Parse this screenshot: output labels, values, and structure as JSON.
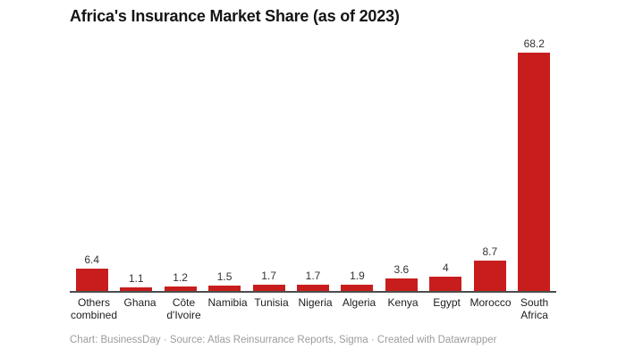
{
  "title": "Africa's Insurance Market Share (as of 2023)",
  "footer": {
    "text": "Chart: BusinessDay · Source: Atlas Reinsurrance Reports, Sigma · Created with Datawrapper"
  },
  "colors": {
    "bar": "#c71e1d",
    "axis": "#4d4d4d",
    "title_text": "#151515",
    "value_text": "#333333",
    "category_text": "#1d1d1d",
    "footer_text": "#9c9c9c",
    "background": "#ffffff"
  },
  "chart_data": {
    "type": "bar",
    "title": "Africa's Insurance Market Share (as of 2023)",
    "categories": [
      "Others combined",
      "Ghana",
      "Côte d'Ivoire",
      "Namibia",
      "Tunisia",
      "Nigeria",
      "Algeria",
      "Kenya",
      "Egypt",
      "Morocco",
      "South Africa"
    ],
    "values": [
      6.4,
      1.1,
      1.2,
      1.5,
      1.7,
      1.7,
      1.9,
      3.6,
      4,
      8.7,
      68.2
    ],
    "value_labels": [
      "6.4",
      "1.1",
      "1.2",
      "1.5",
      "1.7",
      "1.7",
      "1.9",
      "3.6",
      "4",
      "8.7",
      "68.2"
    ],
    "xlabel": "",
    "ylabel": "",
    "ylim": [
      0,
      70
    ],
    "grid": false,
    "legend": "none",
    "data_labels": "above bars",
    "baseline_axis": "x only"
  }
}
